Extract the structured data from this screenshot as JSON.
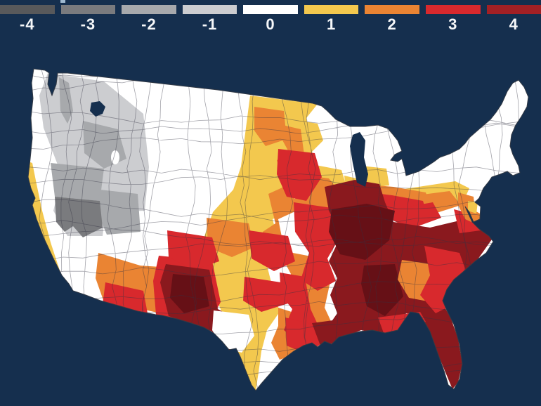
{
  "page": {
    "background": "#152f4e"
  },
  "artifact": {
    "color": "#9fb9d0"
  },
  "legend": {
    "values": [
      "-4",
      "-3",
      "-2",
      "-1",
      "0",
      "1",
      "2",
      "3",
      "4"
    ],
    "colors": [
      "#58595b",
      "#7a7b7e",
      "#a7a9ac",
      "#cccdd0",
      "#ffffff",
      "#f3c84e",
      "#ea8433",
      "#d8292d",
      "#a32024"
    ]
  },
  "map": {
    "kind": "choropleth",
    "area": "contiguous United States climate divisions",
    "sea_color": "#152f4e",
    "outline_color": "#333a45",
    "division_line_color": "rgba(50,52,66,0.45)",
    "core_dark": "#8a191e",
    "core_deepest": "#661016",
    "lake_white": "#ffffff",
    "regions": [
      {
        "region": "Inland Pacific Northwest (E Washington, Idaho, W Montana)",
        "value": -1
      },
      {
        "region": "Northern Nevada / W Utah patches",
        "value": -2
      },
      {
        "region": "Southern Nevada",
        "value": -3
      },
      {
        "region": "West Coast, Montana-Wyoming-Colorado, Northern Plains, Northeast, upper Great Lakes",
        "value": 0
      },
      {
        "region": "California coastal strip",
        "value": 1
      },
      {
        "region": "Central Plains band (Dakotas to central Texas) and Minnesota-Wisconsin-Michigan band",
        "value": 1
      },
      {
        "region": "Southern Pennsylvania strip and Delmarva",
        "value": 1
      },
      {
        "region": "Iowa, Missouri fringe, E Oklahoma, Arkansas, Louisiana, E Texas, Arizona, central Georgia",
        "value": 2
      },
      {
        "region": "SE Minnesota-Iowa, Missouri, Oklahoma-Texas patches, S Arizona, New Mexico fringe, SC-GA coast",
        "value": 3
      },
      {
        "region": "Ohio Valley, Mid-South, Deep South, Virginia-Carolinas, Florida, New Mexico / West Texas",
        "value": 4
      }
    ]
  }
}
